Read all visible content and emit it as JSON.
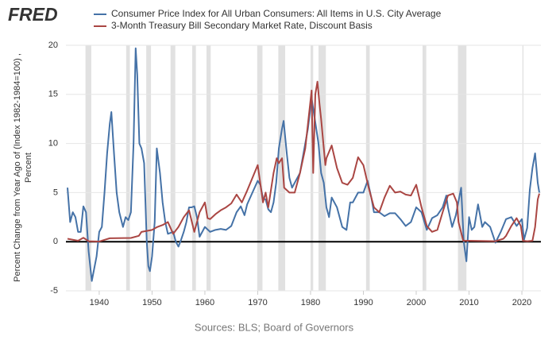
{
  "chart_data": {
    "type": "line",
    "logo": "FRED",
    "ylabel": [
      "Percent Change from Year Ago of (Index 1982-1984=100) ,",
      "Percent"
    ],
    "source": "Sources: BLS; Board of Governors",
    "xlim": [
      1933.7,
      2023.6
    ],
    "xticks": [
      1940,
      1950,
      1960,
      1970,
      1980,
      1990,
      2000,
      2010,
      2020
    ],
    "ylim": [
      -5,
      20
    ],
    "yticks": [
      -5,
      0,
      5,
      10,
      15,
      20
    ],
    "grid": true,
    "recession_color": "#e1e1e1",
    "recessions": [
      [
        1937.4,
        1938.5
      ],
      [
        1945.1,
        1945.8
      ],
      [
        1948.9,
        1949.8
      ],
      [
        1953.5,
        1954.4
      ],
      [
        1957.6,
        1958.3
      ],
      [
        1960.3,
        1961.1
      ],
      [
        1969.9,
        1970.9
      ],
      [
        1973.9,
        1975.2
      ],
      [
        1980.0,
        1980.5
      ],
      [
        1981.5,
        1982.9
      ],
      [
        1990.5,
        1991.2
      ],
      [
        2001.2,
        2001.9
      ],
      [
        2007.9,
        2009.5
      ],
      [
        2020.1,
        2020.3
      ]
    ],
    "series": [
      {
        "name": "Consumer Price Index for All Urban Consumers: All Items in U.S. City Average",
        "color": "#4572a7",
        "x": [
          1934,
          1934.5,
          1935,
          1935.5,
          1936,
          1936.5,
          1937,
          1937.5,
          1938,
          1938.6,
          1939.5,
          1940,
          1940.5,
          1941,
          1941.5,
          1942,
          1942.3,
          1942.8,
          1943.3,
          1943.8,
          1944.5,
          1945,
          1945.5,
          1946,
          1946.5,
          1946.9,
          1947.2,
          1947.6,
          1948,
          1948.5,
          1949,
          1949.3,
          1949.6,
          1950,
          1950.5,
          1950.9,
          1951.5,
          1952,
          1952.5,
          1953,
          1954,
          1954.5,
          1955,
          1955.5,
          1956,
          1956.5,
          1957,
          1957.5,
          1958,
          1958.5,
          1959,
          1959.5,
          1960,
          1961,
          1962,
          1963,
          1964,
          1965,
          1966,
          1966.8,
          1967.5,
          1968,
          1969,
          1970,
          1970.5,
          1971,
          1971.5,
          1972,
          1972.5,
          1973,
          1973.5,
          1974,
          1974.6,
          1974.9,
          1975.5,
          1976,
          1976.5,
          1977,
          1978,
          1979,
          1979.5,
          1980.2,
          1980.8,
          1981.5,
          1982,
          1982.5,
          1983,
          1983.5,
          1984,
          1985,
          1986,
          1986.8,
          1987.5,
          1988,
          1989,
          1990,
          1990.8,
          1991.5,
          1992,
          1993,
          1994,
          1995,
          1996,
          1997,
          1998,
          1999,
          2000,
          2001,
          2002,
          2003,
          2004,
          2005,
          2005.7,
          2006,
          2006.8,
          2007.5,
          2008.5,
          2009,
          2009.5,
          2010,
          2010.5,
          2011,
          2011.7,
          2012.5,
          2013,
          2014,
          2015,
          2016,
          2017,
          2018,
          2019,
          2020,
          2020.4,
          2021,
          2021.5,
          2022,
          2022.5,
          2023,
          2023.3
        ],
        "values": [
          5.5,
          2,
          3,
          2.5,
          1,
          1,
          3.6,
          3,
          -1,
          -4,
          -1.5,
          1,
          1.5,
          5,
          9,
          12,
          13.2,
          9,
          5,
          3,
          1.5,
          2.5,
          2.2,
          3,
          10,
          19.7,
          17,
          10,
          9.5,
          8,
          0,
          -2.5,
          -3,
          -1.5,
          2,
          9.5,
          7,
          4,
          2,
          0.8,
          1,
          0,
          -0.5,
          0.2,
          1,
          2,
          3.5,
          3.5,
          3.6,
          2.5,
          0.5,
          1,
          1.5,
          1,
          1.2,
          1.3,
          1.2,
          1.6,
          3,
          3.6,
          2.7,
          3.8,
          5,
          6.2,
          5.8,
          4.4,
          4.3,
          3.3,
          3,
          4,
          6,
          9.5,
          11.5,
          12.3,
          9,
          6.5,
          5.5,
          6,
          7,
          10,
          11.5,
          14.6,
          12.5,
          10,
          7,
          6,
          3.5,
          2.5,
          4.5,
          3.5,
          1.5,
          1.2,
          4,
          4,
          5,
          5,
          6.2,
          4.5,
          3,
          3,
          2.6,
          2.9,
          2.9,
          2.3,
          1.6,
          2,
          3.5,
          3,
          1.2,
          2.4,
          2.7,
          3.5,
          4.7,
          3.5,
          1.5,
          2.7,
          5.5,
          0,
          -2,
          2.5,
          1.2,
          1.5,
          3.8,
          1.5,
          2,
          1.5,
          -0.1,
          1,
          2.3,
          2.5,
          1.6,
          2.3,
          0.2,
          1.4,
          5.3,
          7.5,
          9,
          6,
          5
        ]
      },
      {
        "name": "3-Month Treasury Bill Secondary Market Rate, Discount Basis",
        "color": "#aa4643",
        "x": [
          1934,
          1935,
          1936,
          1937,
          1938,
          1940,
          1942,
          1946,
          1947.5,
          1948,
          1949,
          1950,
          1951,
          1952,
          1953,
          1954,
          1955,
          1956,
          1957,
          1958,
          1959,
          1960,
          1960.5,
          1961,
          1962,
          1963,
          1964,
          1965,
          1966,
          1967,
          1968,
          1969,
          1970,
          1971,
          1971.5,
          1972,
          1973,
          1973.6,
          1974,
          1974.6,
          1975,
          1976,
          1977,
          1978,
          1979,
          1980.2,
          1980.5,
          1980.9,
          1981.3,
          1981.7,
          1982,
          1982.8,
          1983,
          1984,
          1985,
          1986,
          1987,
          1988,
          1989,
          1990,
          1991,
          1992,
          1993,
          1994,
          1995,
          1996,
          1997,
          1998,
          1999,
          2000,
          2001,
          2001.9,
          2002,
          2003,
          2004,
          2005,
          2006,
          2007,
          2007.7,
          2008,
          2008.9,
          2010,
          2015,
          2015.9,
          2016.5,
          2017,
          2018,
          2019,
          2019.8,
          2020.2,
          2021,
          2022,
          2022.5,
          2023,
          2023.3
        ],
        "values": [
          0.3,
          0.2,
          0.1,
          0.4,
          0.05,
          0.02,
          0.35,
          0.38,
          0.6,
          1.0,
          1.1,
          1.2,
          1.5,
          1.7,
          2.0,
          0.8,
          1.5,
          2.5,
          3.2,
          1.0,
          3.0,
          4.0,
          2.4,
          2.3,
          2.8,
          3.2,
          3.5,
          3.9,
          4.8,
          4.0,
          5.2,
          6.5,
          7.8,
          4.0,
          5,
          3.5,
          7,
          8.5,
          8,
          8.5,
          5.5,
          5,
          5,
          7,
          9.5,
          15.4,
          7,
          15,
          16.3,
          14,
          12.5,
          7.8,
          8.5,
          9.8,
          7.5,
          6,
          5.8,
          6.5,
          8.6,
          7.8,
          5.5,
          3.5,
          3,
          4.5,
          5.7,
          5,
          5.1,
          4.8,
          4.7,
          5.8,
          3.5,
          1.8,
          1.6,
          1,
          1.2,
          3,
          4.7,
          4.9,
          4,
          2,
          0.1,
          0.1,
          0.05,
          0.2,
          0.3,
          0.6,
          1.6,
          2.4,
          1.6,
          0.1,
          0.05,
          0.1,
          1.5,
          4.3,
          4.9
        ]
      }
    ]
  }
}
